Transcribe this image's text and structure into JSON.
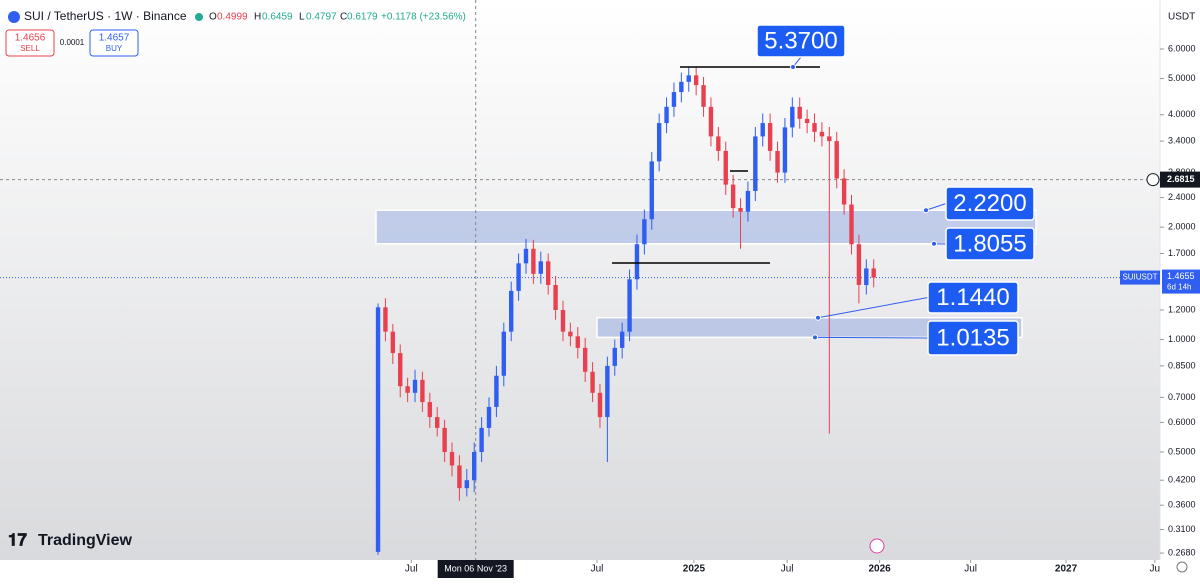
{
  "header": {
    "symbol": "SUI / TetherUS · 1W · Binance",
    "o_key": "O",
    "o": "0.4999",
    "h_key": "H",
    "h": "0.6459",
    "l_key": "L",
    "l": "0.4797",
    "c_key": "C",
    "c": "0.6179",
    "change": "+0.1178 (+23.56%)",
    "sell_price": "1.4656",
    "sell_label": "SELL",
    "spread": "0.0001",
    "buy_price": "1.4657",
    "buy_label": "BUY",
    "currency": "USDT",
    "logo": "TradingView"
  },
  "chart_data": {
    "type": "candlestick",
    "log_scale": true,
    "up_color": "#2f5ef0",
    "down_color": "#e8404f",
    "candles": {
      "o": [
        0.27,
        1.22,
        1.05,
        0.92,
        0.75,
        0.72,
        0.78,
        0.68,
        0.62,
        0.58,
        0.5,
        0.46,
        0.4,
        0.42,
        0.5,
        0.58,
        0.66,
        0.8,
        1.05,
        1.35,
        1.6,
        1.75,
        1.5,
        1.62,
        1.4,
        1.2,
        1.05,
        1.02,
        0.95,
        0.82,
        0.72,
        0.62,
        0.85,
        0.95,
        1.05,
        1.45,
        1.8,
        2.1,
        3.0,
        3.8,
        4.2,
        4.6,
        4.9,
        5.1,
        4.8,
        4.2,
        3.5,
        3.2,
        2.6,
        2.25,
        2.2,
        2.5,
        3.5,
        3.8,
        3.2,
        2.8,
        3.7,
        4.2,
        3.9,
        3.8,
        3.6,
        3.5,
        3.4,
        2.7,
        2.3,
        1.8,
        1.4,
        1.55
      ],
      "h": [
        1.25,
        1.29,
        1.1,
        0.97,
        0.79,
        0.83,
        0.82,
        0.72,
        0.66,
        0.61,
        0.53,
        0.49,
        0.45,
        0.53,
        0.62,
        0.7,
        0.85,
        1.11,
        1.43,
        1.7,
        1.86,
        1.85,
        1.72,
        1.7,
        1.48,
        1.27,
        1.11,
        1.08,
        1.01,
        0.87,
        0.76,
        0.9,
        1.0,
        1.11,
        1.54,
        1.91,
        2.23,
        3.18,
        4.03,
        4.45,
        4.88,
        5.19,
        5.37,
        5.35,
        5.05,
        4.45,
        3.71,
        3.39,
        2.76,
        2.39,
        2.65,
        3.71,
        4.03,
        4.03,
        3.39,
        3.92,
        4.45,
        4.45,
        4.13,
        4.03,
        3.82,
        3.71,
        3.6,
        2.86,
        2.44,
        1.91,
        1.64,
        1.64
      ],
      "l": [
        0.265,
        0.99,
        0.86,
        0.7,
        0.68,
        0.68,
        0.64,
        0.58,
        0.55,
        0.47,
        0.43,
        0.37,
        0.38,
        0.39,
        0.47,
        0.55,
        0.62,
        0.75,
        0.99,
        1.27,
        1.5,
        1.41,
        1.41,
        1.32,
        1.13,
        0.99,
        0.96,
        0.89,
        0.77,
        0.68,
        0.58,
        0.47,
        0.8,
        0.89,
        0.99,
        1.36,
        1.69,
        1.97,
        2.82,
        3.57,
        3.95,
        4.32,
        4.61,
        4.51,
        3.95,
        3.29,
        3.01,
        2.44,
        2.12,
        1.75,
        2.07,
        2.35,
        3.29,
        3.01,
        2.63,
        2.63,
        3.48,
        3.67,
        3.57,
        3.38,
        3.29,
        0.56,
        2.54,
        2.16,
        1.69,
        1.25,
        1.32,
        1.38
      ],
      "c": [
        1.22,
        1.05,
        0.92,
        0.75,
        0.72,
        0.78,
        0.68,
        0.62,
        0.58,
        0.5,
        0.46,
        0.4,
        0.42,
        0.5,
        0.58,
        0.66,
        0.8,
        1.05,
        1.35,
        1.6,
        1.75,
        1.5,
        1.62,
        1.4,
        1.2,
        1.05,
        1.02,
        0.95,
        0.82,
        0.72,
        0.62,
        0.85,
        0.95,
        1.05,
        1.45,
        1.8,
        2.1,
        3.0,
        3.8,
        4.2,
        4.6,
        4.9,
        5.1,
        4.8,
        4.2,
        3.5,
        3.2,
        2.6,
        2.25,
        2.2,
        2.5,
        3.5,
        3.8,
        3.2,
        2.8,
        3.7,
        4.2,
        3.9,
        3.8,
        3.6,
        3.5,
        3.4,
        2.7,
        2.3,
        1.8,
        1.4,
        1.55,
        1.4655
      ]
    },
    "xlim": [
      -51.1,
      105.7
    ],
    "xticks": [
      {
        "value": 4.5,
        "label": "Jul"
      },
      {
        "value": 29.6,
        "label": "Jul"
      },
      {
        "value": 42.7,
        "label": "2025"
      },
      {
        "value": 55.3,
        "label": "Jul"
      },
      {
        "value": 67.8,
        "label": "2026"
      },
      {
        "value": 80.1,
        "label": "Jul"
      },
      {
        "value": 93,
        "label": "2027"
      },
      {
        "value": 105,
        "label": "Ju"
      }
    ],
    "ylim": [
      0.249,
      7.87
    ],
    "yticks": [
      {
        "value": 0.268,
        "label": "0.2680"
      },
      {
        "value": 0.31,
        "label": "0.3100"
      },
      {
        "value": 0.36,
        "label": "0.3600"
      },
      {
        "value": 0.42,
        "label": "0.4200"
      },
      {
        "value": 0.5,
        "label": "0.5000"
      },
      {
        "value": 0.6,
        "label": "0.6000"
      },
      {
        "value": 0.7,
        "label": "0.7000"
      },
      {
        "value": 0.85,
        "label": "0.8500"
      },
      {
        "value": 1,
        "label": "1.0000"
      },
      {
        "value": 1.2,
        "label": "1.2000"
      },
      {
        "value": 1.7,
        "label": "1.7000"
      },
      {
        "value": 2,
        "label": "2.0000"
      },
      {
        "value": 2.4,
        "label": "2.4000"
      },
      {
        "value": 2.8,
        "label": "2.8000"
      },
      {
        "value": 3.4,
        "label": "3.4000"
      },
      {
        "value": 4,
        "label": "4.0000"
      },
      {
        "value": 5,
        "label": "5.0000"
      },
      {
        "value": 6,
        "label": "6.0000"
      }
    ],
    "crosshair": {
      "x": {
        "value": 13.2,
        "label": "Mon 06 Nov '23"
      },
      "y": {
        "value": 2.6815,
        "label": "2.6815"
      }
    },
    "last_price": {
      "value": 1.4655,
      "label": "1.4655",
      "symbol": "SUIUSDT",
      "countdown": "6d 14h"
    },
    "zones": [
      {
        "top": 2.22,
        "bottom": 1.8055
      },
      {
        "top": 1.144,
        "bottom": 1.0135
      }
    ],
    "annotations": [
      {
        "value": 5.37,
        "label": "5.3700"
      },
      {
        "value": 2.22,
        "label": "2.2200"
      },
      {
        "value": 1.8055,
        "label": "1.8055"
      },
      {
        "value": 1.144,
        "label": "1.1440"
      },
      {
        "value": 1.0135,
        "label": "1.0135"
      }
    ]
  }
}
